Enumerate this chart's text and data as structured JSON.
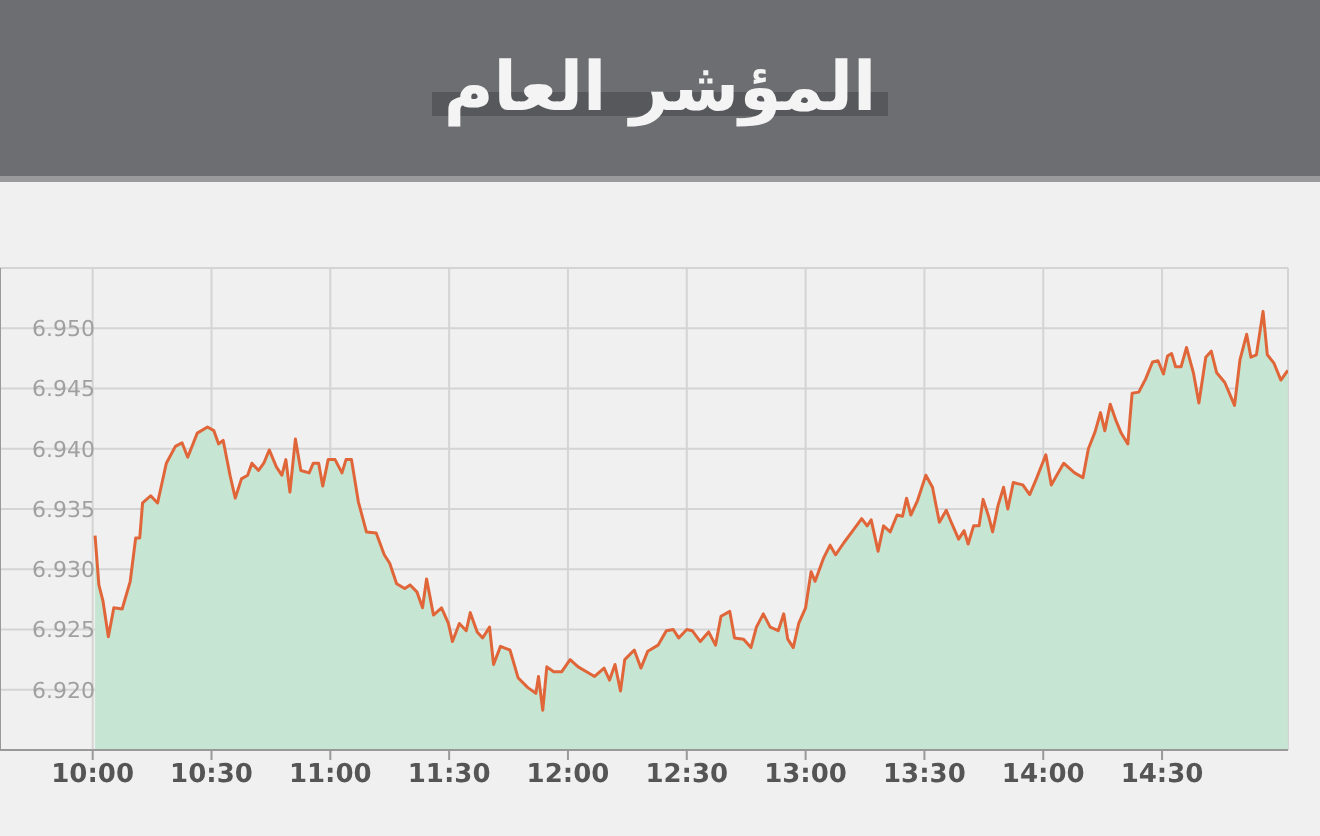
{
  "chart_data": {
    "type": "area",
    "title": "المؤشر العام",
    "x": [
      10.01,
      10.026,
      10.043,
      10.066,
      10.089,
      10.124,
      10.158,
      10.181,
      10.198,
      10.21,
      10.244,
      10.273,
      10.31,
      10.348,
      10.376,
      10.4,
      10.44,
      10.483,
      10.51,
      10.53,
      10.549,
      10.578,
      10.6,
      10.626,
      10.652,
      10.67,
      10.698,
      10.72,
      10.743,
      10.773,
      10.796,
      10.813,
      10.83,
      10.853,
      10.876,
      10.911,
      10.928,
      10.951,
      10.968,
      10.991,
      11.02,
      11.049,
      11.066,
      11.089,
      11.118,
      11.152,
      11.193,
      11.227,
      11.25,
      11.279,
      11.313,
      11.336,
      11.365,
      11.388,
      11.405,
      11.434,
      11.468,
      11.497,
      11.514,
      11.543,
      11.572,
      11.589,
      11.618,
      11.641,
      11.67,
      11.687,
      11.716,
      11.756,
      11.79,
      11.83,
      11.865,
      11.876,
      11.894,
      11.911,
      11.94,
      11.974,
      12.009,
      12.043,
      12.078,
      12.112,
      12.152,
      12.175,
      12.198,
      12.221,
      12.239,
      12.279,
      12.307,
      12.336,
      12.379,
      12.414,
      12.443,
      12.466,
      12.5,
      12.523,
      12.557,
      12.592,
      12.621,
      12.644,
      12.681,
      12.701,
      12.739,
      12.77,
      12.793,
      12.822,
      12.851,
      12.885,
      12.908,
      12.925,
      12.948,
      12.971,
      13.0,
      13.023,
      13.04,
      13.075,
      13.103,
      13.126,
      13.161,
      13.195,
      13.236,
      13.259,
      13.276,
      13.305,
      13.328,
      13.356,
      13.385,
      13.408,
      13.425,
      13.443,
      13.471,
      13.506,
      13.534,
      13.563,
      13.592,
      13.615,
      13.644,
      13.667,
      13.684,
      13.707,
      13.73,
      13.747,
      13.77,
      13.787,
      13.81,
      13.833,
      13.851,
      13.874,
      13.914,
      13.943,
      13.971,
      14.011,
      14.034,
      14.057,
      14.086,
      14.132,
      14.167,
      14.19,
      14.218,
      14.241,
      14.259,
      14.282,
      14.305,
      14.328,
      14.356,
      14.374,
      14.402,
      14.431,
      14.46,
      14.483,
      14.506,
      14.523,
      14.54,
      14.557,
      14.58,
      14.603,
      14.632,
      14.655,
      14.684,
      14.707,
      14.73,
      14.764,
      14.805,
      14.828,
      14.856,
      14.874,
      14.897,
      14.925,
      14.943,
      14.971,
      15.0,
      15.029
    ],
    "series": [
      {
        "color": "#e0663a",
        "values": [
          6.9328,
          6.9287,
          6.9274,
          6.9244,
          6.9268,
          6.9267,
          6.929,
          6.9326,
          6.9326,
          6.9355,
          6.9361,
          6.9355,
          6.9388,
          6.9402,
          6.9405,
          6.9393,
          6.9413,
          6.9418,
          6.9415,
          6.9404,
          6.9407,
          6.9378,
          6.9359,
          6.9375,
          6.9378,
          6.9388,
          6.9382,
          6.9388,
          6.9399,
          6.9385,
          6.9378,
          6.9391,
          6.9364,
          6.9408,
          6.9382,
          6.938,
          6.9388,
          6.9388,
          6.9369,
          6.9391,
          6.9391,
          6.938,
          6.9391,
          6.9391,
          6.9356,
          6.9331,
          6.933,
          6.9312,
          6.9305,
          6.9288,
          6.9284,
          6.9287,
          6.9281,
          6.9268,
          6.9292,
          6.9262,
          6.9268,
          6.9255,
          6.924,
          6.9255,
          6.9249,
          6.9264,
          6.9248,
          6.9243,
          6.9252,
          6.9221,
          6.9236,
          6.9233,
          6.921,
          6.9202,
          6.9197,
          6.9211,
          6.9183,
          6.9219,
          6.9215,
          6.9215,
          6.9225,
          6.9219,
          6.9215,
          6.9211,
          6.9218,
          6.9208,
          6.9221,
          6.9199,
          6.9225,
          6.9233,
          6.9218,
          6.9232,
          6.9237,
          6.9249,
          6.925,
          6.9243,
          6.925,
          6.9249,
          6.924,
          6.9248,
          6.9237,
          6.9261,
          6.9265,
          6.9243,
          6.9242,
          6.9235,
          6.9252,
          6.9263,
          6.9252,
          6.9249,
          6.9263,
          6.9242,
          6.9235,
          6.9255,
          6.9268,
          6.9298,
          6.929,
          6.9309,
          6.932,
          6.9312,
          6.9322,
          6.9331,
          6.9342,
          6.9336,
          6.9341,
          6.9315,
          6.9336,
          6.9331,
          6.9345,
          6.9344,
          6.9359,
          6.9345,
          6.9357,
          6.9378,
          6.9368,
          6.9339,
          6.9349,
          6.9338,
          6.9325,
          6.9332,
          6.9321,
          6.9336,
          6.9336,
          6.9358,
          6.9344,
          6.9331,
          6.9353,
          6.9368,
          6.935,
          6.9372,
          6.937,
          6.9362,
          6.9375,
          6.9395,
          6.937,
          6.9378,
          6.9388,
          6.938,
          6.9376,
          6.94,
          6.9414,
          6.943,
          6.9415,
          6.9437,
          6.9424,
          6.9413,
          6.9404,
          6.9446,
          6.9447,
          6.9458,
          6.9472,
          6.9473,
          6.9462,
          6.9477,
          6.9479,
          6.9468,
          6.9468,
          6.9484,
          6.9463,
          6.9438,
          6.9476,
          6.9481,
          6.9463,
          6.9455,
          6.9436,
          6.9474,
          6.9495,
          6.9476,
          6.9478,
          6.9514,
          6.9478,
          6.9471,
          6.9457,
          6.9465
        ]
      }
    ],
    "xlim": [
      9.61,
      15.03
    ],
    "xticks": [
      {
        "value": 10,
        "label": "10:00"
      },
      {
        "value": 10.5,
        "label": "10:30"
      },
      {
        "value": 11,
        "label": "11:00"
      },
      {
        "value": 11.5,
        "label": "11:30"
      },
      {
        "value": 12,
        "label": "12:00"
      },
      {
        "value": 12.5,
        "label": "12:30"
      },
      {
        "value": 13,
        "label": "13:00"
      },
      {
        "value": 13.5,
        "label": "13:30"
      },
      {
        "value": 14,
        "label": "14:00"
      },
      {
        "value": 14.5,
        "label": "14:30"
      }
    ],
    "ylim": [
      6.915,
      6.955
    ],
    "yticks": [
      {
        "value": 6.92,
        "label": "6.920"
      },
      {
        "value": 6.925,
        "label": "6.925"
      },
      {
        "value": 6.93,
        "label": "6.930"
      },
      {
        "value": 6.935,
        "label": "6.935"
      },
      {
        "value": 6.94,
        "label": "6.940"
      },
      {
        "value": 6.945,
        "label": "6.945"
      },
      {
        "value": 6.95,
        "label": "6.950"
      },
      {
        "value": 6.955,
        "label": null
      }
    ],
    "grid": true,
    "legend": false,
    "marker": "none",
    "line_style": "solid"
  }
}
